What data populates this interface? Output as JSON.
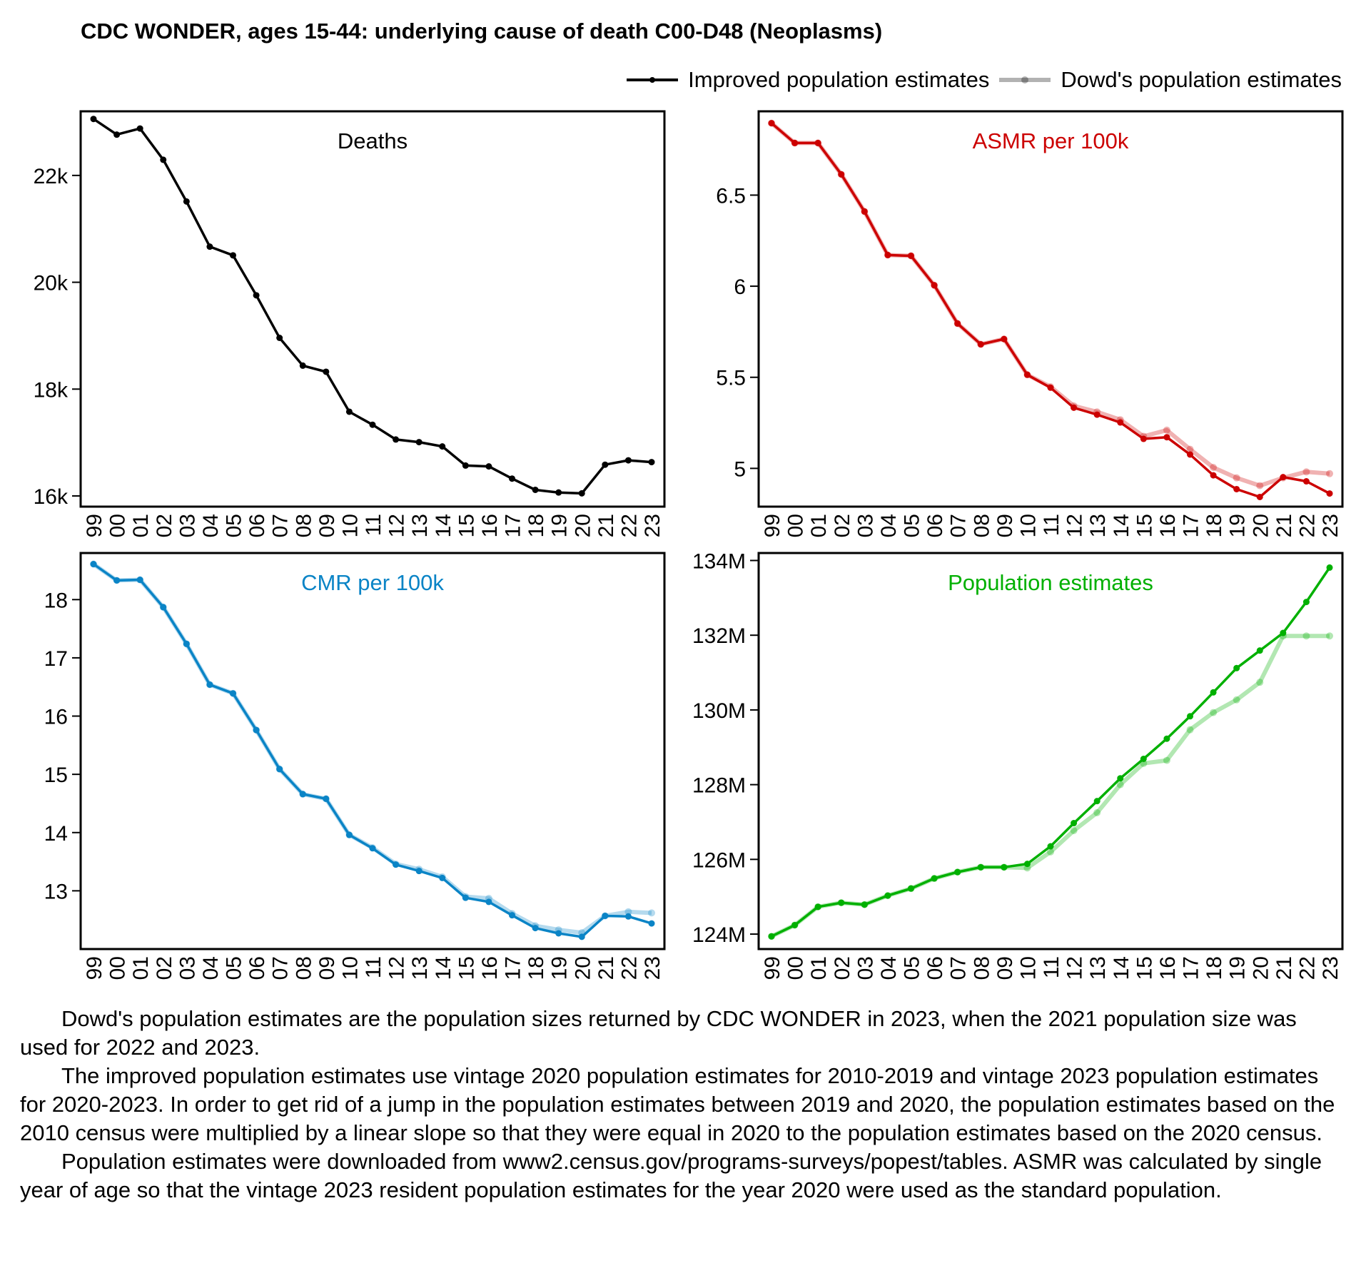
{
  "title": "CDC WONDER, ages 15-44: underlying cause of death C00-D48 (Neoplasms)",
  "legend": [
    {
      "label": "Improved population estimates",
      "color": "#000000",
      "opacity": 1
    },
    {
      "label": "Dowd's population estimates",
      "color": "#000000",
      "opacity": 0.3
    }
  ],
  "footer": [
    "Dowd's population estimates are the population sizes returned by CDC WONDER in 2023, when the 2021 population size was used for 2022 and 2023.",
    "The improved population estimates use vintage 2020 population estimates for 2010-2019 and vintage 2023 population estimates for 2020-2023. In order to get rid of a jump in the population estimates between 2019 and 2020, the population estimates based on the 2010 census were multiplied by a linear slope so that they were equal in 2020 to the population estimates based on the 2020 census.",
    "Population estimates were downloaded from www2.census.gov/programs-surveys/popest/tables. ASMR was calculated by single year of age so that the vintage 2023 resident population estimates for the year 2020 were used as the standard population."
  ],
  "chart_data": [
    {
      "type": "line",
      "title": "Deaths",
      "color": "#000000",
      "categories": [
        "99",
        "00",
        "01",
        "02",
        "03",
        "04",
        "05",
        "06",
        "07",
        "08",
        "09",
        "10",
        "11",
        "12",
        "13",
        "14",
        "15",
        "16",
        "17",
        "18",
        "19",
        "20",
        "21",
        "22",
        "23"
      ],
      "ylim": [
        15800,
        23200
      ],
      "yticks": [
        16000,
        18000,
        20000,
        22000
      ],
      "ytick_labels": [
        "16k",
        "18k",
        "20k",
        "22k"
      ],
      "series": [
        {
          "name": "Improved population estimates",
          "values": [
            23057,
            22764,
            22878,
            22293,
            21512,
            20667,
            20504,
            19756,
            18959,
            18439,
            18325,
            17577,
            17333,
            17057,
            17008,
            16927,
            16569,
            16553,
            16325,
            16114,
            16065,
            16049,
            16585,
            16667,
            16634
          ]
        }
      ]
    },
    {
      "type": "line",
      "title": "ASMR per 100k",
      "color": "#cc0000",
      "categories": [
        "99",
        "00",
        "01",
        "02",
        "03",
        "04",
        "05",
        "06",
        "07",
        "08",
        "09",
        "10",
        "11",
        "12",
        "13",
        "14",
        "15",
        "16",
        "17",
        "18",
        "19",
        "20",
        "21",
        "22",
        "23"
      ],
      "ylim": [
        4.79,
        6.96
      ],
      "yticks": [
        5,
        5.5,
        6,
        6.5
      ],
      "ytick_labels": [
        "5",
        "5.5",
        "6",
        "6.5"
      ],
      "series": [
        {
          "name": "Improved population estimates",
          "values": [
            6.895,
            6.786,
            6.786,
            6.614,
            6.41,
            6.171,
            6.167,
            6.005,
            5.795,
            5.681,
            5.71,
            5.514,
            5.443,
            5.333,
            5.295,
            5.252,
            5.162,
            5.171,
            5.076,
            4.962,
            4.886,
            4.843,
            4.952,
            4.929,
            4.862
          ]
        },
        {
          "name": "Dowd's population estimates",
          "values": [
            6.895,
            6.786,
            6.786,
            6.614,
            6.41,
            6.171,
            6.167,
            6.005,
            5.795,
            5.681,
            5.71,
            5.514,
            5.448,
            5.343,
            5.31,
            5.267,
            5.176,
            5.21,
            5.105,
            5.005,
            4.948,
            4.905,
            4.948,
            4.981,
            4.971
          ]
        }
      ]
    },
    {
      "type": "line",
      "title": "CMR per 100k",
      "color": "#0a84c6",
      "categories": [
        "99",
        "00",
        "01",
        "02",
        "03",
        "04",
        "05",
        "06",
        "07",
        "08",
        "09",
        "10",
        "11",
        "12",
        "13",
        "14",
        "15",
        "16",
        "17",
        "18",
        "19",
        "20",
        "21",
        "22",
        "23"
      ],
      "ylim": [
        12.0,
        18.8
      ],
      "yticks": [
        13,
        14,
        15,
        16,
        17,
        18
      ],
      "ytick_labels": [
        "13",
        "14",
        "15",
        "16",
        "17",
        "18"
      ],
      "series": [
        {
          "name": "Improved population estimates",
          "values": [
            18.61,
            18.33,
            18.34,
            17.87,
            17.24,
            16.54,
            16.39,
            15.76,
            15.09,
            14.66,
            14.58,
            13.96,
            13.73,
            13.45,
            13.34,
            13.22,
            12.88,
            12.81,
            12.58,
            12.36,
            12.27,
            12.21,
            12.57,
            12.56,
            12.44
          ]
        },
        {
          "name": "Dowd's population estimates",
          "values": [
            18.61,
            18.33,
            18.34,
            17.87,
            17.24,
            16.54,
            16.39,
            15.76,
            15.09,
            14.66,
            14.58,
            13.96,
            13.74,
            13.46,
            13.37,
            13.24,
            12.9,
            12.87,
            12.61,
            12.4,
            12.33,
            12.28,
            12.57,
            12.64,
            12.62
          ]
        }
      ]
    },
    {
      "type": "line",
      "title": "Population estimates",
      "color": "#00b000",
      "categories": [
        "99",
        "00",
        "01",
        "02",
        "03",
        "04",
        "05",
        "06",
        "07",
        "08",
        "09",
        "10",
        "11",
        "12",
        "13",
        "14",
        "15",
        "16",
        "17",
        "18",
        "19",
        "20",
        "21",
        "22",
        "23"
      ],
      "ylim": [
        123.6,
        134.2
      ],
      "yticks": [
        124,
        126,
        128,
        130,
        132,
        134
      ],
      "ytick_labels": [
        "124M",
        "126M",
        "128M",
        "130M",
        "132M",
        "134M"
      ],
      "series": [
        {
          "name": "Improved population estimates",
          "values": [
            123.94,
            124.24,
            124.73,
            124.84,
            124.79,
            125.03,
            125.22,
            125.49,
            125.66,
            125.79,
            125.79,
            125.88,
            126.35,
            126.97,
            127.56,
            128.17,
            128.69,
            129.23,
            129.83,
            130.47,
            131.12,
            131.59,
            132.06,
            132.89,
            133.81
          ]
        },
        {
          "name": "Dowd's population estimates",
          "values": [
            123.94,
            124.24,
            124.73,
            124.84,
            124.79,
            125.03,
            125.22,
            125.49,
            125.66,
            125.79,
            125.79,
            125.77,
            126.2,
            126.77,
            127.25,
            128.0,
            128.57,
            128.65,
            129.47,
            129.93,
            130.27,
            130.74,
            131.98,
            131.98,
            131.98
          ]
        }
      ]
    }
  ]
}
